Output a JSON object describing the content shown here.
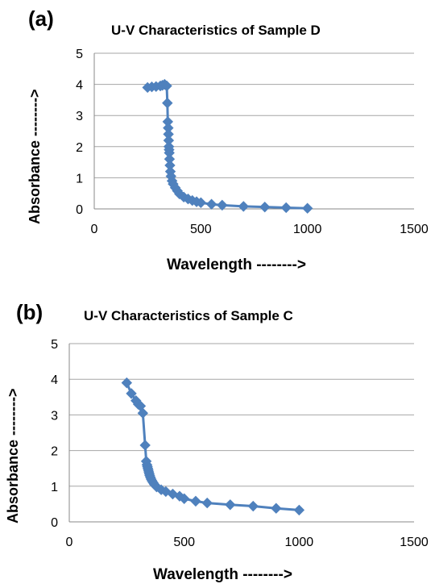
{
  "chart_data": [
    {
      "panel_label": "(a)",
      "type": "line",
      "title": "U-V Characteristics of Sample D",
      "xlabel": "Wavelength -------->",
      "ylabel": "Absorbance -------->",
      "xlim": [
        0,
        1500
      ],
      "ylim": [
        0,
        5
      ],
      "xticks": [
        "0",
        "500",
        "1000",
        "1500"
      ],
      "yticks": [
        "0",
        "1",
        "2",
        "3",
        "4",
        "5"
      ],
      "grid": "horizontal",
      "series_color": "#4f81bd",
      "marker": "diamond",
      "x": [
        250,
        270,
        290,
        310,
        320,
        330,
        340,
        343,
        345,
        347,
        348,
        349,
        350,
        351,
        352,
        353,
        355,
        357,
        360,
        365,
        370,
        380,
        390,
        400,
        420,
        440,
        460,
        480,
        500,
        550,
        600,
        700,
        800,
        900,
        1000
      ],
      "y": [
        3.9,
        3.92,
        3.93,
        3.95,
        3.97,
        4.0,
        3.95,
        3.4,
        2.8,
        2.6,
        2.4,
        2.2,
        2.0,
        1.9,
        1.8,
        1.6,
        1.4,
        1.2,
        1.05,
        0.9,
        0.8,
        0.68,
        0.58,
        0.48,
        0.38,
        0.32,
        0.27,
        0.23,
        0.2,
        0.15,
        0.12,
        0.08,
        0.06,
        0.04,
        0.02
      ]
    },
    {
      "panel_label": "(b)",
      "type": "line",
      "title": "U-V Characteristics of Sample C",
      "xlabel": "Wavelength -------->",
      "ylabel": "Absorbance -------->",
      "xlim": [
        0,
        1500
      ],
      "ylim": [
        0,
        5
      ],
      "xticks": [
        "0",
        "500",
        "1000",
        "1500"
      ],
      "yticks": [
        "0",
        "1",
        "2",
        "3",
        "4",
        "5"
      ],
      "grid": "horizontal",
      "series_color": "#4f81bd",
      "marker": "diamond",
      "x": [
        250,
        270,
        290,
        300,
        310,
        320,
        330,
        335,
        338,
        340,
        342,
        344,
        346,
        348,
        350,
        353,
        356,
        360,
        365,
        370,
        380,
        400,
        420,
        450,
        480,
        500,
        550,
        600,
        700,
        800,
        900,
        1000
      ],
      "y": [
        3.9,
        3.6,
        3.4,
        3.3,
        3.25,
        3.05,
        2.15,
        1.7,
        1.6,
        1.55,
        1.5,
        1.45,
        1.4,
        1.35,
        1.3,
        1.25,
        1.2,
        1.15,
        1.1,
        1.05,
        0.98,
        0.9,
        0.85,
        0.78,
        0.72,
        0.65,
        0.58,
        0.53,
        0.48,
        0.44,
        0.38,
        0.33
      ]
    }
  ]
}
